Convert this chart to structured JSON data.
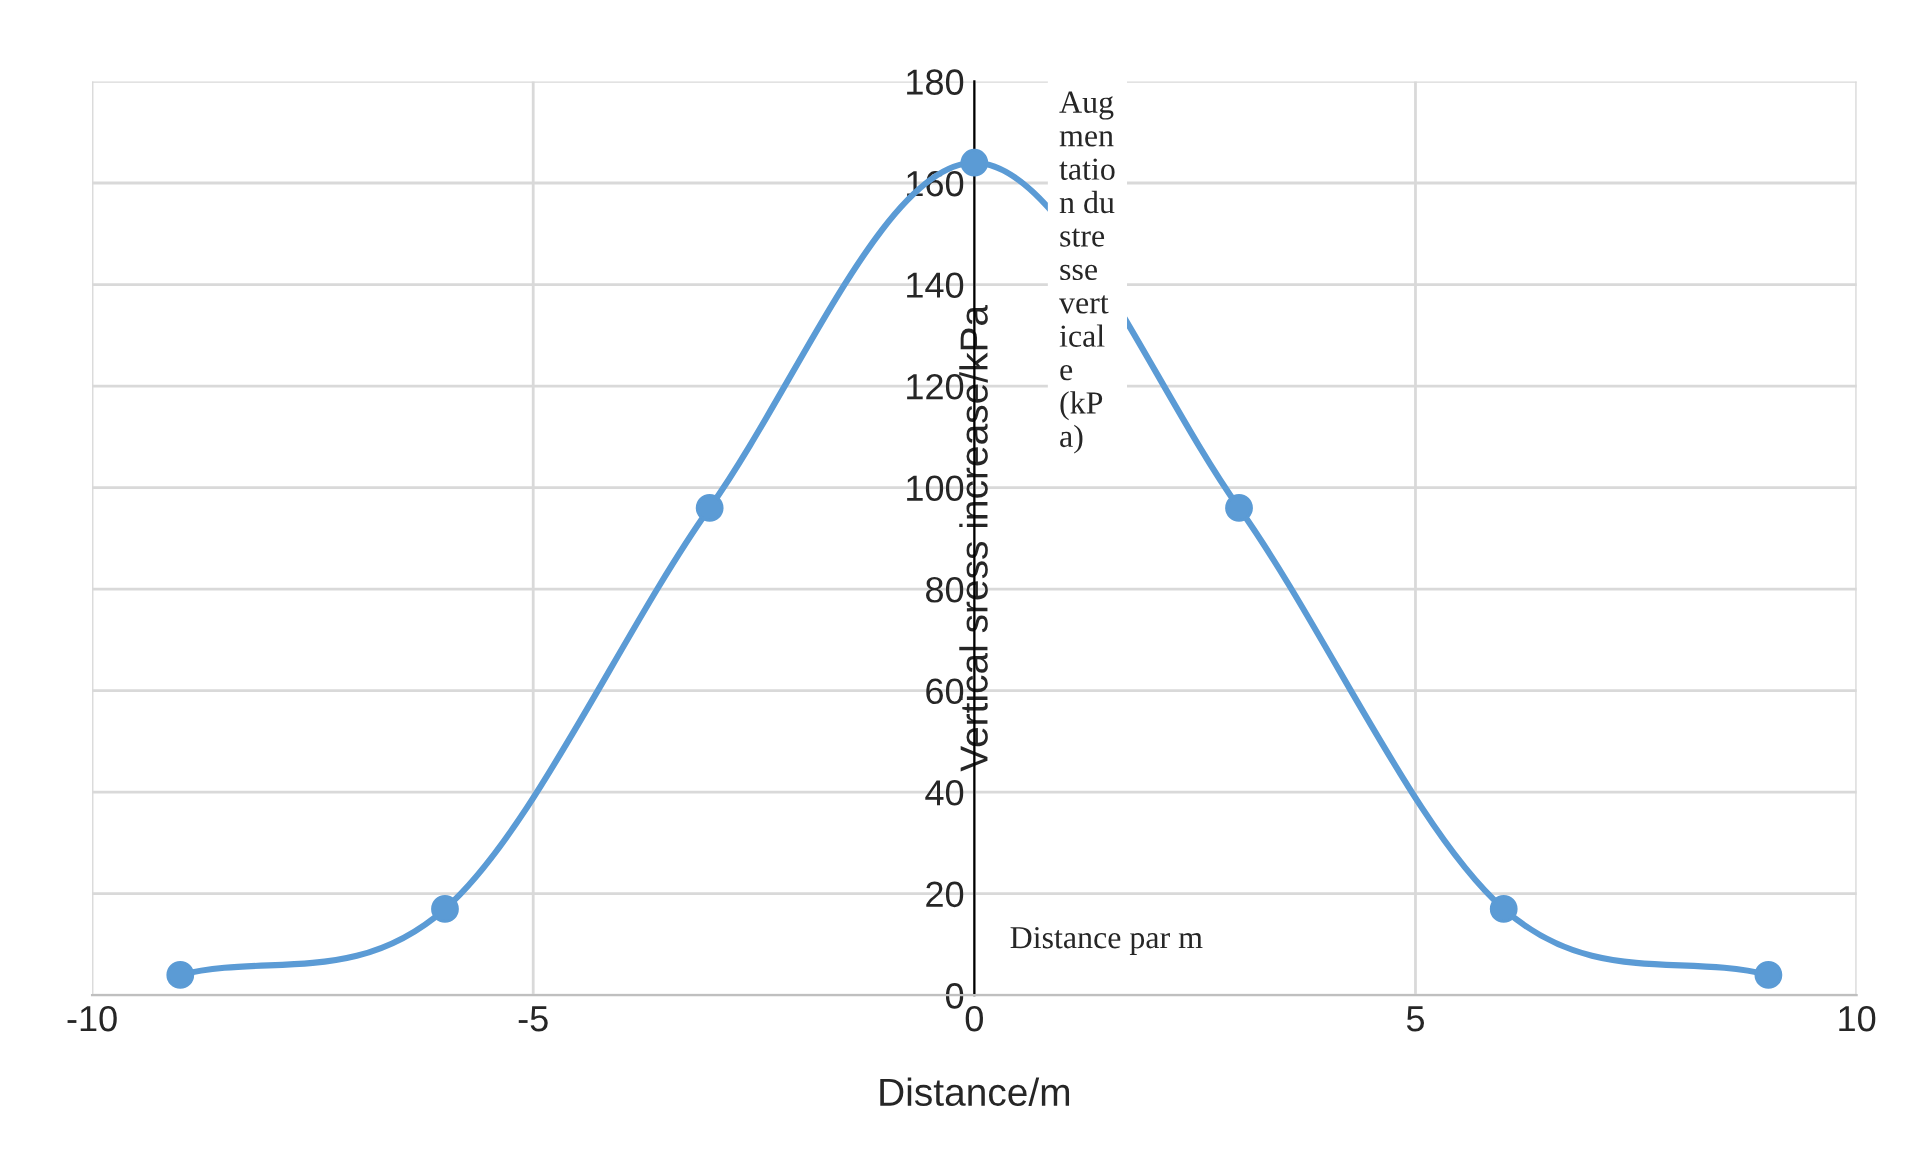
{
  "chart_data": {
    "type": "scatter",
    "xlabel": "Distance/m",
    "ylabel": "Vertical sress increase/kPa",
    "x": [
      -9,
      -6,
      -3,
      0,
      3,
      6,
      9
    ],
    "series": [
      {
        "type": "line",
        "color": "#5b9bd5",
        "values": [
          4,
          17,
          96,
          164,
          96,
          17,
          4
        ]
      }
    ],
    "marker": "circle",
    "xlim": [
      -10,
      10
    ],
    "xticks": [
      -10,
      -5,
      0,
      5,
      10
    ],
    "ylim": [
      0,
      180
    ],
    "yticks": [
      0,
      20,
      40,
      60,
      80,
      100,
      120,
      140,
      160,
      180
    ],
    "grid": true,
    "annotations": [
      "Aug\nmen\ntatio\nn du\nstre\nsse\nvert\nical\ne\n(kP\na)",
      "Distance par m"
    ]
  }
}
